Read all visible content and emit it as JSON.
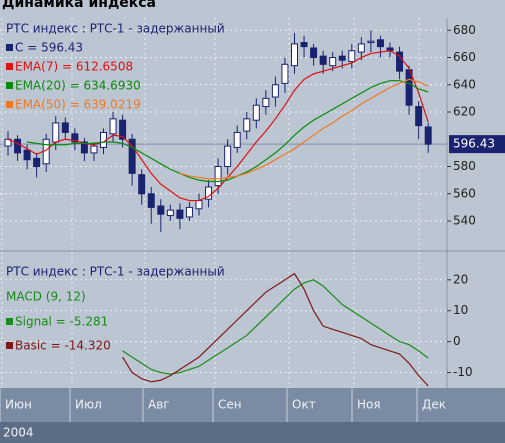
{
  "header": "Динамика индекса",
  "chart_data": [
    {
      "type": "candlestick",
      "title": "РТС индекс : РТС-1 - задержанный",
      "legend": [
        "C = 596.43",
        "EMA(7) = 612.6508",
        "EMA(20) = 634.6930",
        "EMA(50) = 639.0219"
      ],
      "last_label": "596.43",
      "last_value": 596.43,
      "open": [
        595,
        600,
        592,
        586,
        582,
        598,
        612,
        604,
        598,
        590,
        594,
        604,
        614,
        600,
        574,
        560,
        551,
        544,
        548,
        543,
        549,
        556,
        566,
        580,
        594,
        606,
        614,
        624,
        631,
        641,
        654,
        671,
        667,
        661,
        654,
        661,
        657,
        664,
        671,
        673,
        667,
        664,
        651,
        624,
        609
      ],
      "high": [
        606,
        603,
        596,
        590,
        604,
        617,
        616,
        608,
        601,
        598,
        608,
        620,
        618,
        604,
        578,
        565,
        556,
        552,
        553,
        554,
        560,
        570,
        586,
        600,
        610,
        620,
        630,
        636,
        646,
        660,
        678,
        676,
        670,
        665,
        664,
        665,
        670,
        675,
        680,
        676,
        671,
        668,
        654,
        628,
        612
      ],
      "low": [
        588,
        584,
        578,
        572,
        576,
        592,
        600,
        592,
        584,
        584,
        589,
        598,
        594,
        566,
        552,
        538,
        532,
        540,
        534,
        540,
        544,
        550,
        560,
        574,
        590,
        600,
        608,
        618,
        624,
        634,
        648,
        660,
        654,
        648,
        650,
        652,
        652,
        658,
        664,
        660,
        660,
        644,
        618,
        600,
        590
      ],
      "close": [
        600,
        590,
        585,
        580,
        600,
        612,
        605,
        598,
        590,
        595,
        605,
        615,
        600,
        575,
        560,
        550,
        545,
        548,
        542,
        550,
        555,
        565,
        580,
        595,
        605,
        615,
        625,
        630,
        640,
        655,
        670,
        668,
        660,
        655,
        660,
        658,
        665,
        670,
        672,
        668,
        665,
        650,
        625,
        610,
        596.43
      ],
      "candle_color": "#1a2370",
      "series": [
        {
          "name": "EMA(7)",
          "color": "#e01010",
          "values": [
            600,
            597,
            593,
            589,
            592,
            598,
            600,
            599,
            597,
            596,
            598,
            603,
            602,
            595,
            585,
            575,
            567,
            562,
            557,
            555,
            555,
            558,
            564,
            572,
            580,
            589,
            598,
            606,
            615,
            625,
            636,
            644,
            648,
            650,
            652,
            654,
            656,
            660,
            663,
            664,
            665,
            661,
            652,
            634,
            612.6508
          ]
        },
        {
          "name": "EMA(20)",
          "color": "#0a8a0a",
          "values": [
            null,
            null,
            598,
            597,
            596,
            596,
            596,
            597,
            597,
            597,
            598,
            598,
            597,
            594,
            590,
            586,
            582,
            578,
            575,
            572,
            570,
            569,
            569,
            570,
            573,
            576,
            580,
            585,
            590,
            596,
            603,
            609,
            614,
            618,
            622,
            626,
            630,
            634,
            638,
            641,
            643,
            643,
            641,
            637,
            634.693
          ]
        },
        {
          "name": "EMA(50)",
          "color": "#f07820",
          "values": [
            null,
            null,
            null,
            null,
            null,
            null,
            null,
            null,
            null,
            null,
            null,
            null,
            null,
            null,
            null,
            null,
            null,
            null,
            575,
            573,
            572,
            571,
            571,
            572,
            573,
            575,
            578,
            581,
            585,
            589,
            593,
            598,
            603,
            608,
            612,
            617,
            621,
            626,
            630,
            634,
            638,
            641,
            644,
            642,
            639.0219
          ]
        }
      ],
      "ylim": [
        518,
        689
      ],
      "yticks": [
        540,
        560,
        580,
        620,
        640,
        660,
        680
      ],
      "grid": true,
      "x_labels": [
        "Июн",
        "Июл",
        "Авг",
        "Сен",
        "Окт",
        "Ноя",
        "Дек"
      ],
      "year": "2004"
    },
    {
      "type": "line",
      "title": "РТС индекс : РТС-1 - задержанный",
      "subtitle": "MACD (9, 12)",
      "legend": [
        "Signal = -5.281",
        "Basic = -14.320"
      ],
      "series": [
        {
          "name": "Signal",
          "color": "#1a8a1a",
          "values": [
            null,
            null,
            null,
            null,
            null,
            null,
            null,
            null,
            null,
            null,
            null,
            null,
            -3,
            -5,
            -7,
            -9,
            -10,
            -10.5,
            -10,
            -9,
            -8,
            -6,
            -4,
            -2,
            0,
            2,
            5,
            8,
            11,
            14,
            17,
            19,
            20,
            18,
            15,
            12,
            10,
            8,
            6,
            4,
            2,
            0,
            -1,
            -3,
            -5.281
          ]
        },
        {
          "name": "Basic",
          "color": "#801818",
          "values": [
            null,
            null,
            null,
            null,
            null,
            null,
            null,
            null,
            null,
            null,
            null,
            null,
            -5,
            -10,
            -12,
            -13,
            -12.5,
            -11,
            -9,
            -7,
            -5,
            -2,
            1,
            4,
            7,
            10,
            13,
            16,
            18,
            20,
            22,
            17,
            10,
            5,
            4,
            3,
            2,
            1,
            -1,
            -2,
            -3,
            -4,
            -7,
            -11,
            -14.32
          ]
        }
      ],
      "ylim": [
        -15,
        29
      ],
      "yticks": [
        -10,
        0,
        10,
        20
      ],
      "grid": true
    }
  ]
}
